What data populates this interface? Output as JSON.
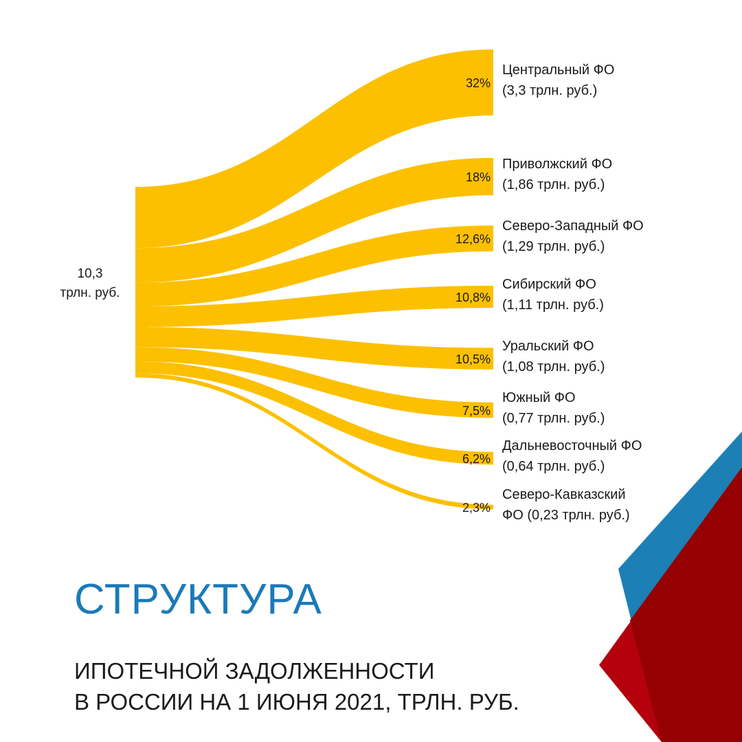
{
  "title": {
    "main": "СТРУКТУРА",
    "line1": "ИПОТЕЧНОЙ ЗАДОЛЖЕННОСТИ",
    "line2": "В РОССИИ НА 1 ИЮНЯ 2021, ТРЛН. РУБ."
  },
  "colors": {
    "flow": "#fcc000",
    "title_accent": "#1a7ab8",
    "corner_blue": "#1c7fb5",
    "corner_red": "#b5000e",
    "corner_dark_red": "#950000"
  },
  "chart_data": {
    "type": "sankey",
    "source": {
      "value": 10.3,
      "label_line1": "10,3",
      "label_line2": "трлн. руб."
    },
    "unit": "трлн. руб.",
    "flows": [
      {
        "region": "Центральный ФО",
        "share_pct": 32,
        "share_label": "32%",
        "value": 3.3,
        "line1": "Центральный ФО",
        "line2": "(3,3 трлн. руб.)"
      },
      {
        "region": "Приволжский ФО",
        "share_pct": 18,
        "share_label": "18%",
        "value": 1.86,
        "line1": "Приволжский ФО",
        "line2": "(1,86 трлн. руб.)"
      },
      {
        "region": "Северо-Западный ФО",
        "share_pct": 12.6,
        "share_label": "12,6%",
        "value": 1.29,
        "line1": "Северо-Западный ФО",
        "line2": "(1,29 трлн. руб.)"
      },
      {
        "region": "Сибирский ФО",
        "share_pct": 10.8,
        "share_label": "10,8%",
        "value": 1.11,
        "line1": "Сибирский ФО",
        "line2": "(1,11 трлн. руб.)"
      },
      {
        "region": "Уральский ФО",
        "share_pct": 10.5,
        "share_label": "10,5%",
        "value": 1.08,
        "line1": "Уральский ФО",
        "line2": "(1,08 трлн. руб.)"
      },
      {
        "region": "Южный ФО",
        "share_pct": 7.5,
        "share_label": "7,5%",
        "value": 0.77,
        "line1": "Южный ФО",
        "line2": "(0,77 трлн. руб.)"
      },
      {
        "region": "Дальневосточный ФО",
        "share_pct": 6.2,
        "share_label": "6,2%",
        "value": 0.64,
        "line1": "Дальневосточный ФО",
        "line2": "(0,64 трлн. руб.)"
      },
      {
        "region": "Северо-Кавказский ФО",
        "share_pct": 2.3,
        "share_label": "2,3%",
        "value": 0.23,
        "line1": "Северо-Кавказский",
        "line2": "ФО (0,23 трлн. руб.)"
      }
    ]
  }
}
